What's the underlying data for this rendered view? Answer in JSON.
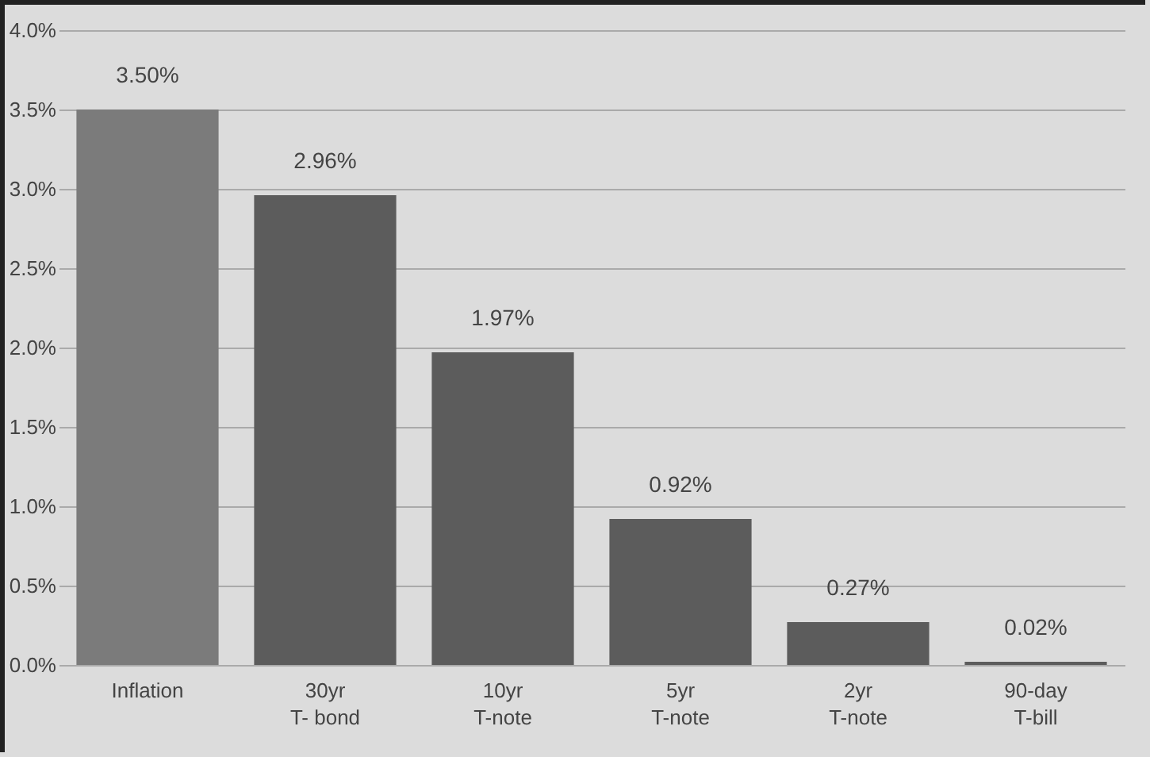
{
  "chart_data": {
    "type": "bar",
    "categories": [
      "Inflation",
      "30yr\nT- bond",
      "10yr\nT-note",
      "5yr\nT-note",
      "2yr\nT-note",
      "90-day\nT-bill"
    ],
    "values": [
      3.5,
      2.96,
      1.97,
      0.92,
      0.27,
      0.02
    ],
    "colors": [
      "#7b7b7b",
      "#5c5c5c",
      "#5c5c5c",
      "#5c5c5c",
      "#5c5c5c",
      "#5c5c5c"
    ],
    "value_labels": [
      "3.50%",
      "2.96%",
      "1.97%",
      "0.92%",
      "0.27%",
      "0.02%"
    ],
    "ylim": [
      0,
      4
    ],
    "yticks": [
      {
        "value": 0,
        "label": "0.0%"
      },
      {
        "value": 0.5,
        "label": "0.5%"
      },
      {
        "value": 1,
        "label": "1.0%"
      },
      {
        "value": 1.5,
        "label": "1.5%"
      },
      {
        "value": 2,
        "label": "2.0%"
      },
      {
        "value": 2.5,
        "label": "2.5%"
      },
      {
        "value": 3,
        "label": "3.0%"
      },
      {
        "value": 3.5,
        "label": "3.5%"
      },
      {
        "value": 4,
        "label": "4.0%"
      }
    ],
    "grid": true
  }
}
